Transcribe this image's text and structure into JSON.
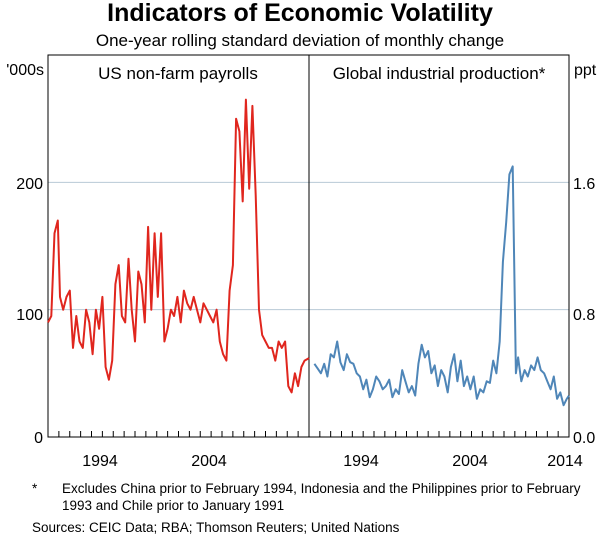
{
  "title": "Indicators of Economic Volatility",
  "subtitle": "One-year rolling standard deviation of monthly change",
  "notes": {
    "marker": "*",
    "text": "Excludes China prior to February 1994, Indonesia and the Philippines prior to February 1993 and Chile prior to January 1991"
  },
  "sources": "Sources:   CEIC Data; RBA; Thomson Reuters; United Nations",
  "chart_data": [
    {
      "type": "line",
      "title": "US non-farm payrolls",
      "ylabel": "'000s",
      "ylim": [
        0,
        300
      ],
      "yticks": [
        "0",
        "100",
        "200"
      ],
      "xlim": [
        1990,
        2014
      ],
      "xticks": [
        "1994",
        "2004"
      ],
      "color": "#e0261e",
      "series": [
        {
          "name": "US non-farm payrolls",
          "x": [
            1990.0,
            1990.3,
            1990.6,
            1990.9,
            1991.1,
            1991.4,
            1991.7,
            1992.0,
            1992.3,
            1992.6,
            1992.9,
            1993.2,
            1993.5,
            1993.8,
            1994.1,
            1994.4,
            1994.7,
            1995.0,
            1995.3,
            1995.6,
            1995.9,
            1996.2,
            1996.5,
            1996.8,
            1997.1,
            1997.4,
            1997.7,
            1998.0,
            1998.3,
            1998.6,
            1998.9,
            1999.2,
            1999.5,
            1999.8,
            2000.1,
            2000.4,
            2000.7,
            2001.0,
            2001.3,
            2001.6,
            2001.9,
            2002.2,
            2002.5,
            2002.8,
            2003.1,
            2003.4,
            2003.7,
            2004.0,
            2004.3,
            2004.6,
            2004.9,
            2005.2,
            2005.5,
            2005.8,
            2006.1,
            2006.4,
            2006.7,
            2007.0,
            2007.3,
            2007.6,
            2007.9,
            2008.2,
            2008.5,
            2008.8,
            2009.1,
            2009.4,
            2009.7,
            2010.0,
            2010.3,
            2010.6,
            2010.9,
            2011.2,
            2011.5,
            2011.8,
            2012.1,
            2012.4,
            2012.7,
            2013.0,
            2013.3,
            2013.6,
            2014.0
          ],
          "values": [
            90,
            95,
            160,
            170,
            110,
            100,
            110,
            115,
            70,
            95,
            75,
            70,
            100,
            90,
            65,
            100,
            85,
            110,
            55,
            45,
            60,
            120,
            135,
            95,
            90,
            140,
            100,
            75,
            130,
            120,
            90,
            165,
            100,
            160,
            110,
            160,
            75,
            85,
            100,
            95,
            110,
            90,
            115,
            105,
            100,
            110,
            100,
            90,
            105,
            100,
            95,
            90,
            100,
            75,
            65,
            60,
            115,
            135,
            250,
            240,
            185,
            265,
            195,
            260,
            190,
            100,
            80,
            75,
            70,
            70,
            60,
            75,
            70,
            75,
            40,
            35,
            50,
            40,
            55,
            60,
            62
          ]
        }
      ]
    },
    {
      "type": "line",
      "title": "Global industrial production*",
      "ylabel": "ppt",
      "ylim": [
        0,
        2.4
      ],
      "yticks": [
        "0.0",
        "0.8",
        "1.6"
      ],
      "xlim": [
        1990,
        2014
      ],
      "xticks": [
        "1994",
        "2004",
        "2014"
      ],
      "color": "#4f86b8",
      "series": [
        {
          "name": "Global industrial production",
          "x": [
            1990.5,
            1990.8,
            1991.1,
            1991.4,
            1991.7,
            1992.0,
            1992.3,
            1992.6,
            1992.9,
            1993.2,
            1993.5,
            1993.8,
            1994.1,
            1994.4,
            1994.7,
            1995.0,
            1995.3,
            1995.6,
            1995.9,
            1996.2,
            1996.5,
            1996.8,
            1997.1,
            1997.4,
            1997.7,
            1998.0,
            1998.3,
            1998.6,
            1998.9,
            1999.2,
            1999.5,
            1999.8,
            2000.1,
            2000.4,
            2000.7,
            2001.0,
            2001.3,
            2001.6,
            2001.9,
            2002.2,
            2002.5,
            2002.8,
            2003.1,
            2003.4,
            2003.7,
            2004.0,
            2004.3,
            2004.6,
            2004.9,
            2005.2,
            2005.5,
            2005.8,
            2006.1,
            2006.4,
            2006.7,
            2007.0,
            2007.3,
            2007.6,
            2007.9,
            2008.2,
            2008.5,
            2008.8,
            2009.1,
            2009.3,
            2009.6,
            2009.9,
            2010.2,
            2010.5,
            2010.8,
            2011.1,
            2011.4,
            2011.7,
            2012.0,
            2012.3,
            2012.6,
            2012.9,
            2013.2,
            2013.5,
            2013.8,
            2014.0
          ],
          "values": [
            0.46,
            0.43,
            0.4,
            0.46,
            0.38,
            0.52,
            0.5,
            0.6,
            0.47,
            0.42,
            0.52,
            0.47,
            0.46,
            0.4,
            0.38,
            0.3,
            0.36,
            0.25,
            0.3,
            0.38,
            0.35,
            0.3,
            0.32,
            0.36,
            0.25,
            0.3,
            0.27,
            0.42,
            0.35,
            0.28,
            0.32,
            0.26,
            0.46,
            0.58,
            0.5,
            0.54,
            0.4,
            0.45,
            0.32,
            0.42,
            0.38,
            0.28,
            0.44,
            0.52,
            0.35,
            0.48,
            0.32,
            0.38,
            0.3,
            0.38,
            0.24,
            0.3,
            0.28,
            0.35,
            0.34,
            0.48,
            0.4,
            0.6,
            1.1,
            1.35,
            1.65,
            1.7,
            0.4,
            0.5,
            0.35,
            0.42,
            0.38,
            0.45,
            0.42,
            0.5,
            0.42,
            0.4,
            0.35,
            0.3,
            0.38,
            0.24,
            0.28,
            0.2,
            0.24,
            0.26
          ]
        }
      ]
    }
  ]
}
